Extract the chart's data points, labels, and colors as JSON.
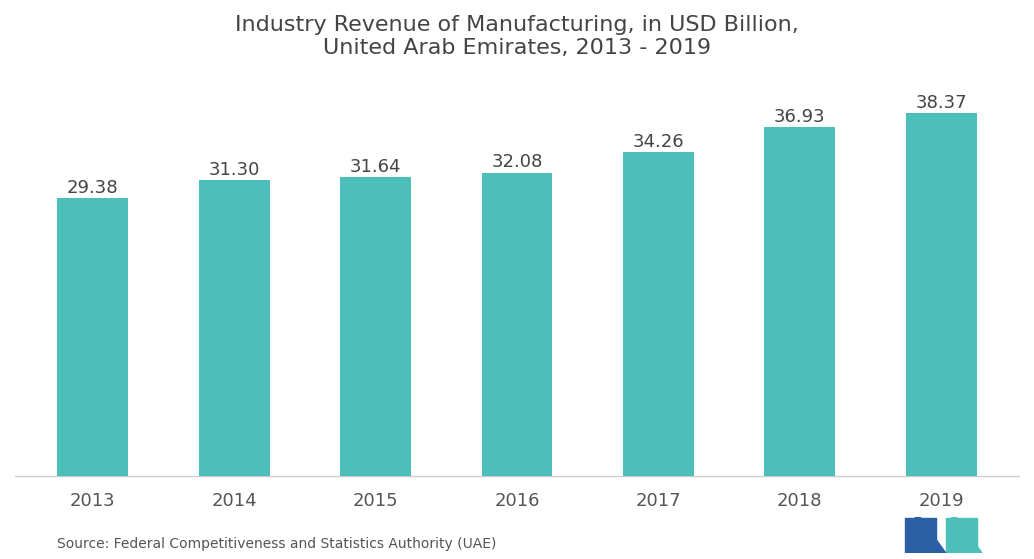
{
  "title": "Industry Revenue of Manufacturing, in USD Billion,\nUnited Arab Emirates, 2013 - 2019",
  "categories": [
    "2013",
    "2014",
    "2015",
    "2016",
    "2017",
    "2018",
    "2019"
  ],
  "values": [
    29.38,
    31.3,
    31.64,
    32.08,
    34.26,
    36.93,
    38.37
  ],
  "bar_color": "#4DBFBA",
  "background_color": "#ffffff",
  "title_fontsize": 16,
  "label_fontsize": 13,
  "value_fontsize": 13,
  "source_text": "Source: Federal Competitiveness and Statistics Authority (UAE)",
  "source_fontsize": 10,
  "ylim_min": 26,
  "ylim_max": 42,
  "bar_width": 0.5
}
